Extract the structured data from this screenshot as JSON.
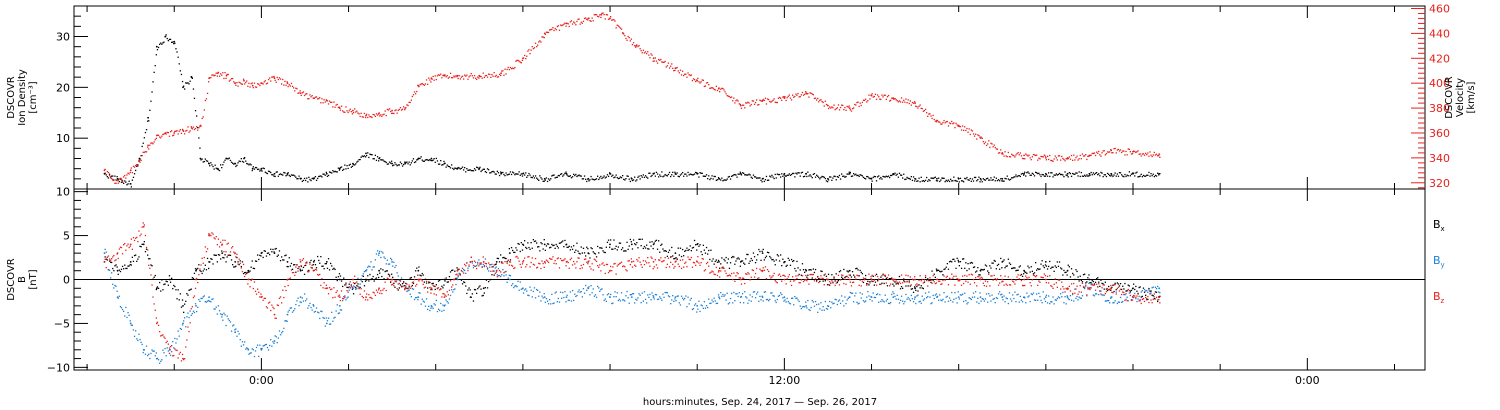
{
  "chart_data": [
    {
      "type": "scatter",
      "panel": "plasma",
      "y_left": {
        "label_lines": [
          "DSCOVR",
          "Ion Density",
          "[cm⁻³]"
        ],
        "range": [
          0,
          36
        ],
        "major_ticks": [
          10,
          20,
          30
        ],
        "tick_labels": [
          "10",
          "20",
          "30"
        ],
        "minor_step": 2
      },
      "y_right": {
        "label_lines": [
          "DSCOVR",
          "Velocity",
          "[km/s]"
        ],
        "range": [
          315,
          462
        ],
        "major_ticks": [
          320,
          340,
          360,
          380,
          400,
          420,
          440,
          460
        ],
        "tick_labels": [
          "320",
          "340",
          "360",
          "380",
          "400",
          "420",
          "440",
          "460"
        ],
        "minor_step": 4,
        "color": "#e8201c"
      },
      "series": [
        {
          "color": "#000000",
          "axis": "left",
          "x": [
            -3.6,
            -3.3,
            -3.0,
            -2.8,
            -2.6,
            -2.4,
            -2.2,
            -2.0,
            -1.8,
            -1.6,
            -1.4,
            -1.2,
            -1.0,
            -0.8,
            -0.6,
            -0.4,
            -0.2,
            0.0,
            0.3,
            0.6,
            0.9,
            1.2,
            1.5,
            1.8,
            2.1,
            2.4,
            2.7,
            3.0,
            3.3,
            3.6,
            3.9,
            4.2,
            4.5,
            5.0,
            5.5,
            6.0,
            6.5,
            7.0,
            7.5,
            8.0,
            8.5,
            9.0,
            9.5,
            10.0,
            10.5,
            11.0,
            11.5,
            12.0,
            12.5,
            13.0,
            13.5,
            14.0,
            14.5,
            15.0,
            15.5,
            16.0,
            16.5,
            17.0,
            17.5,
            18.0,
            18.5,
            19.0,
            19.5,
            20.0,
            20.6
          ],
          "y": [
            3,
            2,
            1,
            6,
            14,
            28,
            30,
            29,
            20,
            22,
            6,
            5,
            4,
            6,
            5,
            6,
            4,
            4,
            3,
            3,
            2,
            2,
            3,
            4,
            5,
            7,
            6,
            5,
            5,
            6,
            6,
            5,
            4,
            4,
            3,
            3,
            2,
            3,
            2,
            3,
            2,
            3,
            3,
            3,
            2,
            3,
            2,
            3,
            3,
            2,
            3,
            2,
            3,
            2,
            2,
            2,
            2,
            2,
            3,
            3,
            3,
            3,
            3,
            3,
            3
          ]
        },
        {
          "color": "#e8201c",
          "axis": "right",
          "x": [
            -3.6,
            -3.4,
            -3.2,
            -3.0,
            -2.8,
            -2.6,
            -2.4,
            -2.2,
            -2.0,
            -1.8,
            -1.6,
            -1.4,
            -1.2,
            -1.0,
            -0.8,
            -0.6,
            -0.4,
            -0.2,
            0.0,
            0.3,
            0.6,
            0.9,
            1.2,
            1.5,
            1.8,
            2.1,
            2.4,
            2.7,
            3.0,
            3.3,
            3.6,
            3.9,
            4.2,
            4.5,
            5.0,
            5.5,
            6.0,
            6.5,
            7.0,
            7.5,
            7.8,
            8.0,
            8.3,
            8.6,
            9.0,
            9.5,
            10.0,
            10.5,
            11.0,
            11.5,
            12.0,
            12.5,
            13.0,
            13.5,
            14.0,
            14.5,
            15.0,
            15.5,
            16.0,
            16.5,
            17.0,
            17.5,
            18.0,
            18.5,
            19.0,
            19.5,
            20.0,
            20.6
          ],
          "x_note": "",
          "y": [
            330,
            322,
            322,
            330,
            338,
            350,
            358,
            360,
            360,
            362,
            364,
            366,
            404,
            408,
            406,
            400,
            402,
            398,
            400,
            404,
            400,
            392,
            388,
            386,
            380,
            378,
            374,
            376,
            378,
            380,
            398,
            404,
            406,
            406,
            406,
            408,
            420,
            440,
            448,
            452,
            455,
            452,
            440,
            430,
            420,
            412,
            402,
            396,
            382,
            386,
            388,
            392,
            382,
            380,
            390,
            388,
            384,
            370,
            366,
            356,
            344,
            342,
            340,
            340,
            342,
            346,
            345,
            343
          ]
        }
      ]
    },
    {
      "type": "scatter",
      "panel": "magnetic-field",
      "y_left": {
        "label_lines": [
          "DSCOVR",
          "B",
          "[nT]"
        ],
        "range": [
          -10.3,
          10.3
        ],
        "major_ticks": [
          -10,
          -5,
          0,
          5,
          10
        ],
        "tick_labels": [
          "−10",
          "−5",
          "0",
          "5",
          "10"
        ],
        "minor_step": 1
      },
      "zero_line": true,
      "legend": [
        {
          "label": "B",
          "sub": "x",
          "color": "#000000"
        },
        {
          "label": "B",
          "sub": "y",
          "color": "#1c7fd4"
        },
        {
          "label": "B",
          "sub": "z",
          "color": "#e8201c"
        }
      ],
      "series": [
        {
          "name": "Bx",
          "color": "#000000",
          "x": [
            -3.6,
            -3.3,
            -3.0,
            -2.7,
            -2.4,
            -2.1,
            -1.8,
            -1.5,
            -1.2,
            -0.9,
            -0.6,
            -0.3,
            0.0,
            0.3,
            0.6,
            0.9,
            1.2,
            1.5,
            1.8,
            2.1,
            2.4,
            2.7,
            3.0,
            3.3,
            3.6,
            3.9,
            4.2,
            4.5,
            4.8,
            5.1,
            5.4,
            5.7,
            6.0,
            6.5,
            7.0,
            7.5,
            8.0,
            8.5,
            9.0,
            9.5,
            10.0,
            10.5,
            11.0,
            11.5,
            12.0,
            12.5,
            13.0,
            13.5,
            14.0,
            14.5,
            15.0,
            15.5,
            16.0,
            16.5,
            17.0,
            17.5,
            18.0,
            18.5,
            19.0,
            19.5,
            20.0,
            20.6
          ],
          "y": [
            2,
            1,
            2,
            4,
            -1,
            0,
            -3,
            1,
            2,
            3,
            2,
            1,
            3,
            3,
            2,
            1,
            2,
            2,
            0,
            -1,
            0,
            1,
            0,
            -1,
            1,
            -1,
            0,
            1,
            -2,
            -1,
            2,
            3,
            4,
            4,
            4,
            3,
            4,
            4,
            4,
            3,
            4,
            2,
            2,
            3,
            2,
            1,
            0,
            1,
            0,
            0,
            -1,
            1,
            2,
            1,
            2,
            1,
            2,
            1,
            0,
            -1,
            -1,
            -2
          ]
        },
        {
          "name": "By",
          "color": "#1c7fd4",
          "x": [
            -3.6,
            -3.3,
            -3.0,
            -2.7,
            -2.4,
            -2.1,
            -1.8,
            -1.5,
            -1.2,
            -0.9,
            -0.6,
            -0.3,
            0.0,
            0.3,
            0.6,
            0.9,
            1.2,
            1.5,
            1.8,
            2.1,
            2.4,
            2.7,
            3.0,
            3.3,
            3.6,
            3.9,
            4.2,
            4.5,
            4.8,
            5.1,
            5.4,
            5.7,
            6.0,
            6.5,
            7.0,
            7.5,
            8.0,
            8.5,
            9.0,
            9.5,
            10.0,
            10.5,
            11.0,
            11.5,
            12.0,
            12.5,
            13.0,
            13.5,
            14.0,
            14.5,
            15.0,
            15.5,
            16.0,
            16.5,
            17.0,
            17.5,
            18.0,
            18.5,
            19.0,
            19.5,
            20.0,
            20.6
          ],
          "y": [
            3,
            -2,
            -5,
            -8,
            -9,
            -8,
            -5,
            -3,
            -2,
            -4,
            -6,
            -8,
            -8,
            -7,
            -4,
            -2,
            -3,
            -5,
            -3,
            -1,
            1,
            3,
            2,
            -1,
            -2,
            -3,
            -3,
            0,
            2,
            2,
            1,
            0,
            -1,
            -2,
            -2,
            -1,
            -2,
            -2,
            -2,
            -2,
            -3,
            -2,
            -2,
            -2,
            -2,
            -3,
            -3,
            -2,
            -2,
            -2,
            -2,
            -2,
            -2,
            -2,
            -2,
            -2,
            -2,
            -2,
            -1,
            -2,
            -2,
            -1
          ]
        },
        {
          "name": "Bz",
          "color": "#e8201c",
          "x": [
            -3.6,
            -3.3,
            -3.0,
            -2.7,
            -2.4,
            -2.1,
            -1.8,
            -1.5,
            -1.2,
            -0.9,
            -0.6,
            -0.3,
            0.0,
            0.3,
            0.6,
            0.9,
            1.2,
            1.5,
            1.8,
            2.1,
            2.4,
            2.7,
            3.0,
            3.3,
            3.6,
            3.9,
            4.2,
            4.5,
            4.8,
            5.1,
            5.4,
            5.7,
            6.0,
            6.5,
            7.0,
            7.5,
            8.0,
            8.5,
            9.0,
            9.5,
            10.0,
            10.5,
            11.0,
            11.5,
            12.0,
            12.5,
            13.0,
            13.5,
            14.0,
            14.5,
            15.0,
            15.5,
            16.0,
            16.5,
            17.0,
            17.5,
            18.0,
            18.5,
            19.0,
            19.5,
            20.0,
            20.6
          ],
          "y": [
            2,
            3,
            4,
            6,
            -5,
            -8,
            -9,
            0,
            5,
            4,
            3,
            0,
            -2,
            -4,
            0,
            2,
            1,
            -1,
            -2,
            0,
            -2,
            -1,
            0,
            -1,
            0,
            -1,
            -2,
            1,
            2,
            2,
            1,
            2,
            2,
            2,
            2,
            2,
            1,
            2,
            2,
            2,
            2,
            1,
            0,
            1,
            0,
            0,
            0,
            0,
            0,
            0,
            0,
            0,
            0,
            0,
            0,
            0,
            0,
            -1,
            -1,
            -1,
            -2,
            -2
          ]
        }
      ]
    }
  ],
  "x_axis": {
    "range": [
      -4.3,
      26.7
    ],
    "label": "hours:minutes, Sep. 24, 2017 — Sep. 26, 2017",
    "major_ticks": [
      0,
      12,
      24
    ],
    "tick_labels": [
      "0:00",
      "12:00",
      "0:00"
    ],
    "minor_step": 2
  }
}
